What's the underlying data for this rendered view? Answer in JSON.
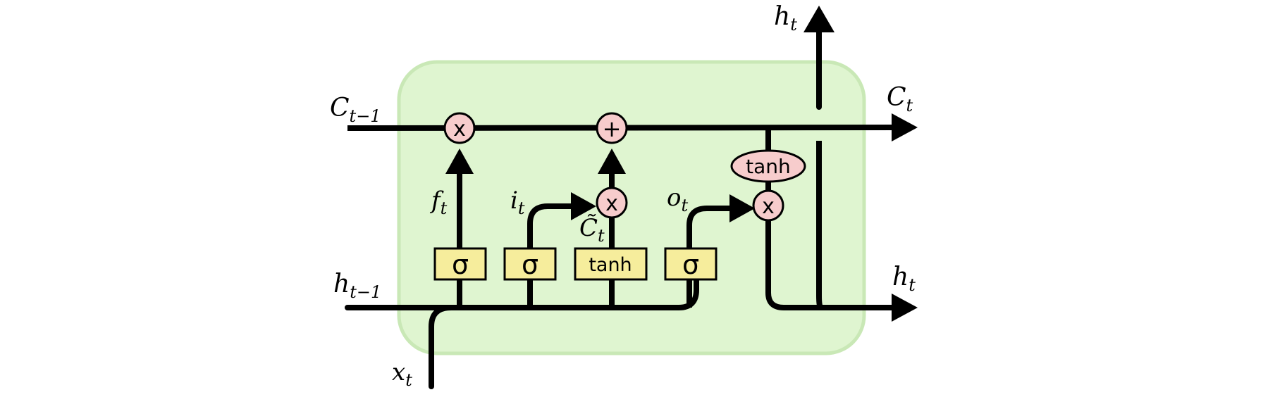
{
  "labels": {
    "c_prev": {
      "base": "C",
      "sub": "t−1"
    },
    "h_prev": {
      "base": "h",
      "sub": "t−1"
    },
    "x_in": {
      "base": "x",
      "sub": "t"
    },
    "c_out": {
      "base": "C",
      "sub": "t"
    },
    "h_out_right": {
      "base": "h",
      "sub": "t"
    },
    "h_out_top": {
      "base": "h",
      "sub": "t"
    },
    "forget": {
      "base": "f",
      "sub": "t"
    },
    "input": {
      "base": "i",
      "sub": "t"
    },
    "candidate": {
      "base": "C̃",
      "sub": "t"
    },
    "output": {
      "base": "o",
      "sub": "t"
    }
  },
  "gates": {
    "forget_sigma": "σ",
    "input_sigma": "σ",
    "candidate_tanh": "tanh",
    "output_sigma": "σ"
  },
  "ops": {
    "forget_mult": "x",
    "add": "+",
    "input_mult": "x",
    "cell_tanh": "tanh",
    "output_mult": "x"
  },
  "colors": {
    "cell_fill": "#dff5d0",
    "cell_stroke": "#c9e8b6",
    "gate_fill": "#f6ed9c",
    "op_fill": "#f7cccc",
    "line": "#000000"
  }
}
